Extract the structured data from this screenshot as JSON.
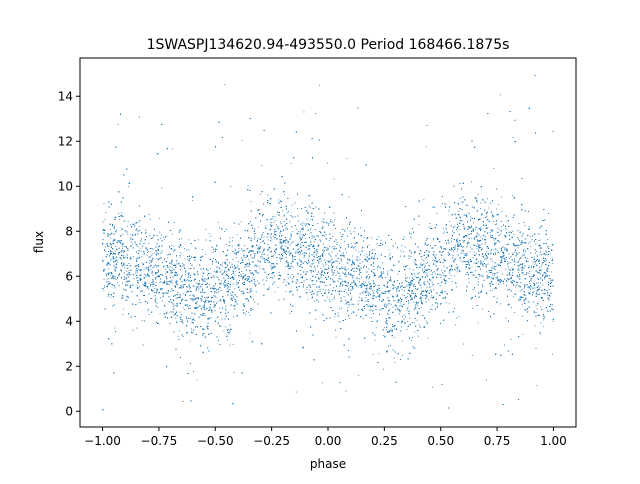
{
  "chart_data": {
    "type": "scatter",
    "title": "1SWASPJ134620.94-493550.0 Period 168466.1875s",
    "xlabel": "phase",
    "ylabel": "flux",
    "xlim": [
      -1.1,
      1.1
    ],
    "ylim": [
      -0.7,
      15.7
    ],
    "x_ticks": [
      -1.0,
      -0.75,
      -0.5,
      -0.25,
      0.0,
      0.25,
      0.5,
      0.75,
      1.0
    ],
    "x_tick_labels": [
      "−1.00",
      "−0.75",
      "−0.50",
      "−0.25",
      "0.00",
      "0.25",
      "0.50",
      "0.75",
      "1.00"
    ],
    "y_ticks": [
      0,
      2,
      4,
      6,
      8,
      10,
      12,
      14
    ],
    "y_tick_labels": [
      "0",
      "2",
      "4",
      "6",
      "8",
      "10",
      "12",
      "14"
    ],
    "grid": false,
    "legend": "none",
    "point_color": "#1f77b4",
    "series": [
      {
        "x": [
          -1.0,
          -0.95,
          -0.9,
          -0.85,
          -0.8,
          -0.75,
          -0.7,
          -0.65,
          -0.6,
          -0.55,
          -0.5,
          -0.45,
          -0.4,
          -0.35,
          -0.3,
          -0.25,
          -0.2,
          -0.15,
          -0.1,
          -0.05,
          0.0,
          0.05,
          0.1,
          0.15,
          0.2,
          0.25,
          0.3,
          0.35,
          0.4,
          0.45,
          0.5,
          0.55,
          0.6,
          0.65,
          0.7,
          0.75,
          0.8,
          0.85,
          0.9,
          0.95,
          1.0
        ],
        "y": [
          7.1,
          6.9,
          6.7,
          6.5,
          6.3,
          6.1,
          5.9,
          5.6,
          5.3,
          5.0,
          5.2,
          5.6,
          6.0,
          6.3,
          7.2,
          7.4,
          7.3,
          7.1,
          6.9,
          6.7,
          6.5,
          6.3,
          6.1,
          5.9,
          5.6,
          5.3,
          5.0,
          5.2,
          5.6,
          6.0,
          6.3,
          7.2,
          7.4,
          7.3,
          7.1,
          6.9,
          6.7,
          6.5,
          6.3,
          6.1,
          5.9
        ]
      }
    ]
  }
}
